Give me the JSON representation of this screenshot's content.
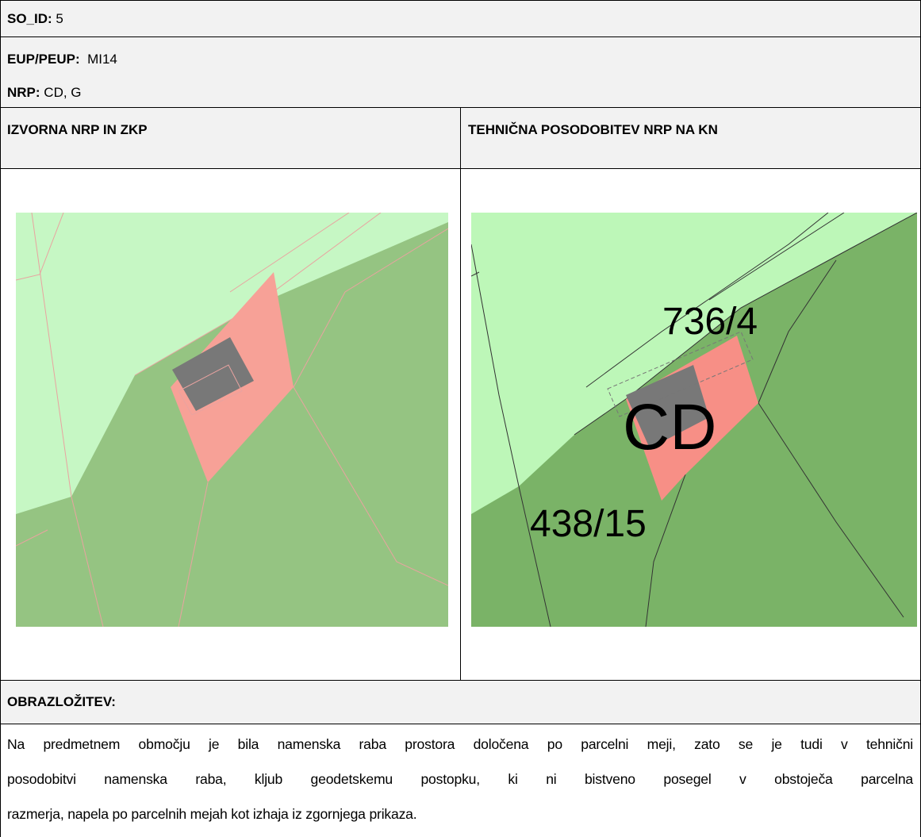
{
  "header": {
    "so_id_label": "SO_ID:",
    "so_id": "5",
    "eup_label": "EUP/PEUP:",
    "eup": "MI14",
    "nrp_label": "NRP:",
    "nrp": "CD, G"
  },
  "columns": [
    "IZVORNA NRP IN ZKP",
    "TEHNIČNA POSODOBITEV NRP NA KN"
  ],
  "map_labels": {
    "parcel_top": "736/4",
    "zone": "CD",
    "parcel_bottom": "438/15"
  },
  "explanation": {
    "title": "OBRAZLOŽITEV:",
    "lines": [
      "Na predmetnem območju je bila namenska raba prostora določena po parcelni meji, zato se je tudi v tehnični",
      "posodobitvi namenska raba, kljub geodetskemu postopku, ki ni bistveno posegel v obstoječa parcelna",
      "razmerja, napela po parcelnih mejah kot izhaja iz zgornjega prikaza."
    ]
  }
}
